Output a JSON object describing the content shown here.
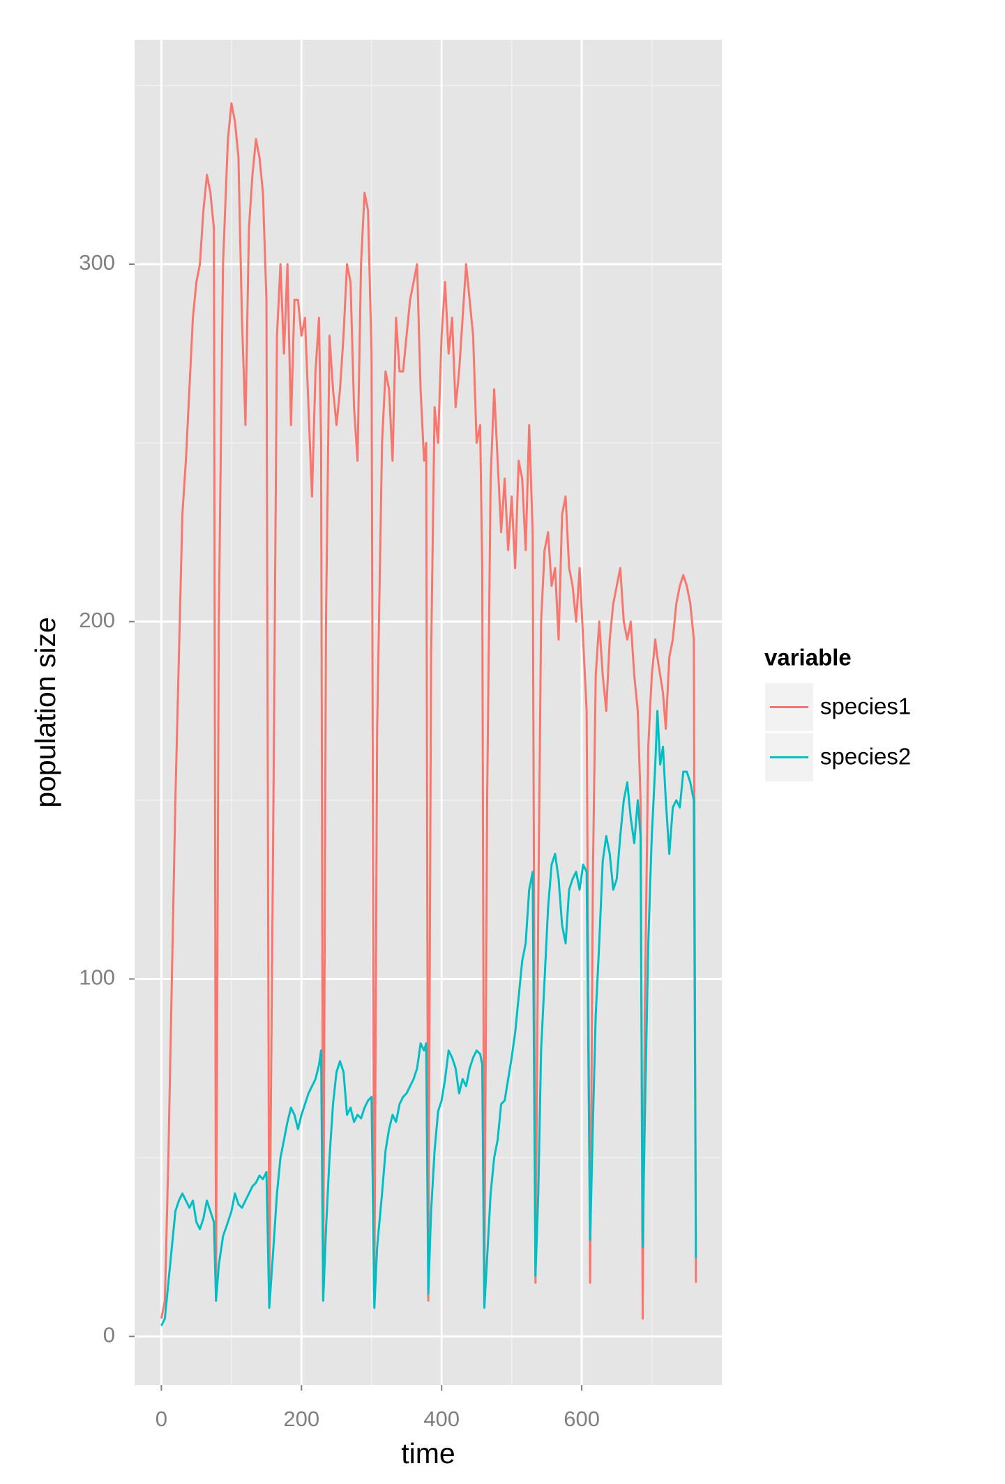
{
  "chart_data": {
    "type": "line",
    "x_label": "time",
    "y_label": "population size",
    "legend_title": "variable",
    "legend_position": "right",
    "grid": true,
    "xlim": [
      -38.2,
      800
    ],
    "ylim": [
      -13.6,
      362.8
    ],
    "xticks": [
      0,
      200,
      400,
      600
    ],
    "yticks": [
      0,
      100,
      200,
      300
    ],
    "x": [
      0,
      5,
      10,
      15,
      20,
      25,
      30,
      35,
      40,
      45,
      50,
      55,
      60,
      65,
      70,
      75,
      78,
      82,
      88,
      95,
      100,
      105,
      110,
      115,
      120,
      125,
      130,
      135,
      140,
      145,
      150,
      154,
      160,
      165,
      170,
      175,
      180,
      185,
      190,
      195,
      200,
      205,
      210,
      215,
      220,
      225,
      228,
      231,
      235,
      240,
      245,
      250,
      255,
      260,
      265,
      270,
      275,
      280,
      285,
      290,
      295,
      300,
      304,
      308,
      315,
      320,
      325,
      330,
      335,
      340,
      345,
      350,
      355,
      360,
      365,
      370,
      375,
      378,
      381,
      385,
      390,
      395,
      400,
      405,
      410,
      415,
      420,
      425,
      430,
      435,
      440,
      445,
      450,
      455,
      458,
      461,
      465,
      470,
      475,
      480,
      485,
      490,
      495,
      500,
      505,
      510,
      515,
      520,
      525,
      530,
      534,
      538,
      542,
      547,
      552,
      557,
      562,
      567,
      572,
      577,
      582,
      587,
      592,
      597,
      602,
      607,
      612,
      616,
      620,
      625,
      630,
      635,
      640,
      645,
      650,
      655,
      660,
      665,
      670,
      675,
      680,
      684,
      687,
      690,
      695,
      700,
      705,
      708,
      712,
      716,
      720,
      725,
      730,
      735,
      740,
      745,
      750,
      755,
      760,
      763
    ],
    "series": [
      {
        "name": "species1",
        "color": "#F8766D",
        "values": [
          5,
          10,
          50,
          100,
          150,
          190,
          230,
          245,
          265,
          285,
          295,
          300,
          315,
          325,
          320,
          310,
          10,
          200,
          300,
          335,
          345,
          340,
          330,
          285,
          255,
          310,
          325,
          335,
          330,
          320,
          290,
          10,
          150,
          280,
          300,
          275,
          300,
          255,
          290,
          290,
          280,
          285,
          260,
          235,
          270,
          285,
          250,
          10,
          200,
          280,
          265,
          255,
          265,
          280,
          300,
          295,
          260,
          245,
          300,
          320,
          315,
          275,
          10,
          170,
          250,
          270,
          265,
          245,
          285,
          270,
          270,
          280,
          290,
          295,
          300,
          265,
          245,
          250,
          10,
          190,
          260,
          250,
          280,
          295,
          275,
          285,
          260,
          270,
          285,
          300,
          290,
          280,
          250,
          255,
          215,
          10,
          150,
          240,
          265,
          245,
          225,
          240,
          220,
          235,
          215,
          245,
          240,
          220,
          255,
          225,
          15,
          120,
          200,
          220,
          225,
          210,
          215,
          195,
          230,
          235,
          215,
          210,
          200,
          215,
          195,
          175,
          15,
          130,
          185,
          200,
          185,
          175,
          195,
          205,
          210,
          215,
          200,
          195,
          200,
          185,
          175,
          150,
          5,
          90,
          165,
          185,
          195,
          190,
          185,
          180,
          170,
          190,
          195,
          205,
          210,
          213,
          210,
          205,
          195,
          15
        ]
      },
      {
        "name": "species2",
        "color": "#00BFC4",
        "values": [
          3,
          5,
          15,
          25,
          35,
          38,
          40,
          38,
          36,
          38,
          32,
          30,
          33,
          38,
          35,
          32,
          10,
          20,
          28,
          32,
          35,
          40,
          37,
          36,
          38,
          40,
          42,
          43,
          45,
          44,
          46,
          8,
          25,
          40,
          50,
          55,
          60,
          64,
          62,
          58,
          62,
          65,
          68,
          70,
          72,
          76,
          80,
          10,
          30,
          50,
          65,
          74,
          77,
          74,
          62,
          64,
          60,
          62,
          61,
          64,
          66,
          67,
          8,
          25,
          40,
          52,
          58,
          62,
          60,
          65,
          67,
          68,
          70,
          72,
          75,
          82,
          80,
          82,
          12,
          35,
          52,
          63,
          66,
          72,
          80,
          78,
          75,
          68,
          72,
          70,
          75,
          78,
          80,
          79,
          76,
          8,
          22,
          40,
          50,
          55,
          65,
          66,
          72,
          78,
          85,
          95,
          105,
          110,
          125,
          130,
          17,
          40,
          80,
          100,
          120,
          132,
          135,
          128,
          115,
          110,
          125,
          128,
          130,
          125,
          132,
          130,
          27,
          60,
          90,
          110,
          133,
          140,
          135,
          125,
          128,
          140,
          150,
          155,
          145,
          138,
          150,
          140,
          25,
          60,
          110,
          140,
          160,
          175,
          160,
          165,
          150,
          135,
          148,
          150,
          148,
          158,
          158,
          155,
          150,
          22
        ]
      }
    ]
  }
}
